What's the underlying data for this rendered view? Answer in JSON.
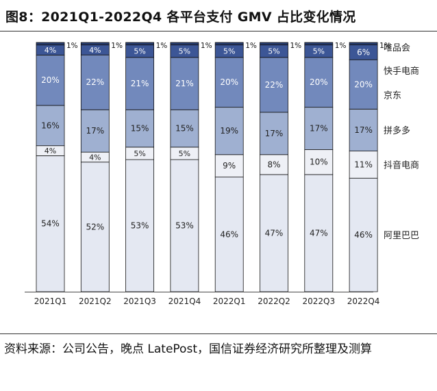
{
  "title": "图8：2021Q1-2022Q4 各平台支付 GMV 占比变化情况",
  "source": "资料来源：公司公告，晚点 LatePost，国信证券经济研究所整理及测算",
  "colors": {
    "阿里巴巴": "#e4e8f2",
    "抖音电商": "#eef0f6",
    "拼多多": "#9fb0d1",
    "京东": "#7289bc",
    "快手电商": "#3c5696",
    "唯品会": "#273c6e"
  },
  "chart_data": {
    "type": "bar",
    "stacked": true,
    "percent": true,
    "categories": [
      "2021Q1",
      "2021Q2",
      "2021Q3",
      "2021Q4",
      "2022Q1",
      "2022Q2",
      "2022Q3",
      "2022Q4"
    ],
    "series": [
      {
        "name": "阿里巴巴",
        "values": [
          54,
          52,
          53,
          53,
          46,
          47,
          47,
          46
        ]
      },
      {
        "name": "抖音电商",
        "values": [
          4,
          4,
          5,
          5,
          9,
          8,
          10,
          11
        ]
      },
      {
        "name": "拼多多",
        "values": [
          16,
          17,
          15,
          15,
          19,
          17,
          17,
          17
        ]
      },
      {
        "name": "京东",
        "values": [
          20,
          22,
          21,
          21,
          20,
          22,
          20,
          20
        ]
      },
      {
        "name": "快手电商",
        "values": [
          4,
          4,
          5,
          5,
          5,
          5,
          5,
          6
        ]
      },
      {
        "name": "唯品会",
        "values": [
          1,
          1,
          1,
          1,
          1,
          1,
          1,
          1
        ]
      }
    ],
    "ylim": [
      0,
      100
    ],
    "grid": false,
    "legend": "right"
  }
}
